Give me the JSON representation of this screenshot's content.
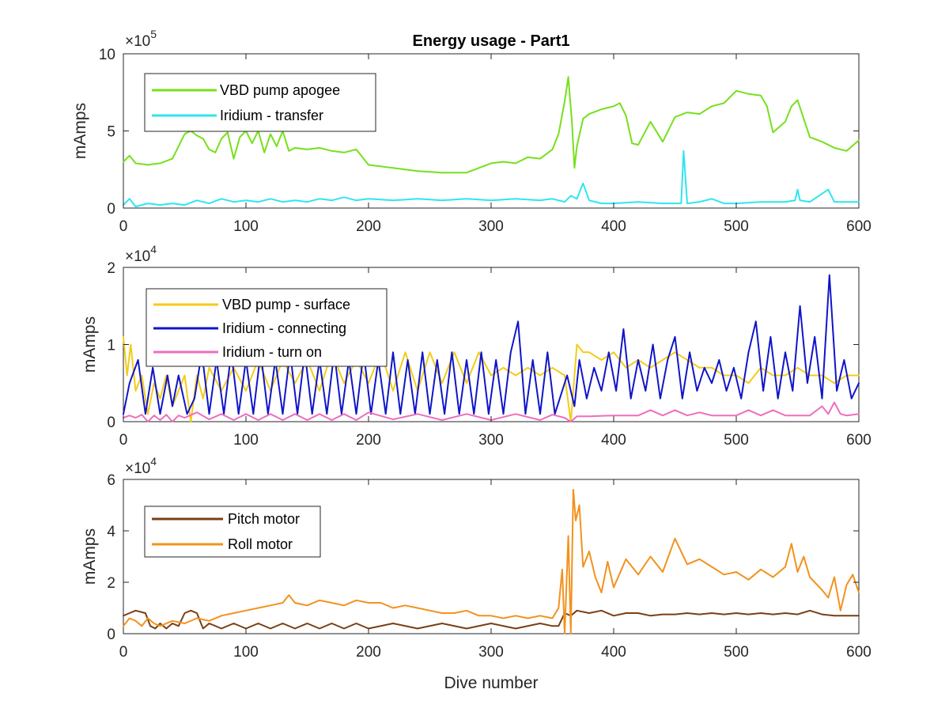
{
  "chart_data": [
    {
      "type": "line",
      "title": "Energy usage - Part1",
      "ylabel": "mAmps",
      "xlabel": "",
      "xlim": [
        0,
        600
      ],
      "ylim": [
        0,
        10
      ],
      "y_multiplier_label": "×10",
      "y_multiplier_exp": "5",
      "xticks": [
        "0",
        "100",
        "200",
        "300",
        "400",
        "500",
        "600"
      ],
      "yticks": [
        "0",
        "5",
        "10"
      ],
      "legend_position": "top-left",
      "series": [
        {
          "name": "VBD pump apogee",
          "color": "#77e01c",
          "x": [
            0,
            5,
            10,
            20,
            30,
            40,
            50,
            55,
            60,
            65,
            70,
            75,
            80,
            85,
            90,
            95,
            100,
            105,
            110,
            115,
            120,
            125,
            130,
            135,
            140,
            150,
            160,
            170,
            180,
            190,
            200,
            220,
            240,
            260,
            280,
            300,
            310,
            320,
            330,
            340,
            350,
            355,
            360,
            363,
            366,
            368,
            370,
            375,
            380,
            390,
            400,
            405,
            410,
            415,
            420,
            430,
            440,
            450,
            460,
            470,
            480,
            490,
            500,
            510,
            520,
            525,
            530,
            540,
            545,
            550,
            560,
            570,
            580,
            590,
            600
          ],
          "y": [
            3.0,
            3.4,
            2.9,
            2.8,
            2.9,
            3.2,
            4.8,
            5.0,
            4.7,
            4.5,
            3.8,
            3.6,
            4.5,
            4.9,
            3.2,
            4.6,
            5.0,
            4.2,
            5.0,
            3.6,
            4.8,
            4.0,
            5.0,
            3.7,
            3.9,
            3.8,
            3.9,
            3.7,
            3.6,
            3.8,
            2.8,
            2.6,
            2.4,
            2.3,
            2.3,
            2.9,
            3.0,
            2.9,
            3.3,
            3.2,
            3.8,
            4.8,
            6.9,
            8.5,
            5.5,
            2.6,
            4.0,
            5.8,
            6.1,
            6.4,
            6.6,
            6.8,
            6.0,
            4.2,
            4.1,
            5.6,
            4.3,
            5.9,
            6.2,
            6.1,
            6.6,
            6.8,
            7.6,
            7.4,
            7.3,
            6.6,
            4.9,
            5.6,
            6.6,
            7.0,
            4.6,
            4.3,
            3.9,
            3.7,
            4.4
          ]
        },
        {
          "name": "Iridium - transfer",
          "color": "#2fe5ef",
          "x": [
            0,
            5,
            10,
            20,
            30,
            40,
            50,
            60,
            70,
            80,
            90,
            100,
            110,
            120,
            130,
            140,
            150,
            160,
            170,
            180,
            190,
            200,
            220,
            240,
            260,
            280,
            300,
            320,
            340,
            350,
            360,
            365,
            370,
            375,
            380,
            390,
            400,
            420,
            440,
            450,
            455,
            457,
            460,
            470,
            480,
            490,
            500,
            520,
            540,
            548,
            550,
            552,
            560,
            575,
            580,
            590,
            600
          ],
          "y": [
            0.2,
            0.6,
            0.1,
            0.3,
            0.2,
            0.3,
            0.2,
            0.5,
            0.3,
            0.6,
            0.4,
            0.5,
            0.4,
            0.6,
            0.4,
            0.5,
            0.4,
            0.6,
            0.5,
            0.7,
            0.5,
            0.6,
            0.5,
            0.6,
            0.5,
            0.6,
            0.5,
            0.6,
            0.5,
            0.6,
            0.4,
            0.8,
            0.6,
            1.6,
            0.5,
            0.3,
            0.3,
            0.4,
            0.3,
            0.3,
            0.3,
            3.7,
            0.3,
            0.4,
            0.6,
            0.3,
            0.3,
            0.4,
            0.4,
            0.5,
            1.2,
            0.5,
            0.4,
            1.2,
            0.4,
            0.4,
            0.4
          ]
        }
      ]
    },
    {
      "type": "line",
      "title": "",
      "ylabel": "mAmps",
      "xlabel": "",
      "xlim": [
        0,
        600
      ],
      "ylim": [
        0,
        2
      ],
      "y_multiplier_label": "×10",
      "y_multiplier_exp": "4",
      "xticks": [
        "0",
        "100",
        "200",
        "300",
        "400",
        "500",
        "600"
      ],
      "yticks": [
        "0",
        "1",
        "2"
      ],
      "legend_position": "top-left",
      "series": [
        {
          "name": "VBD pump - surface",
          "color": "#f4cb18",
          "x": [
            0,
            3,
            6,
            10,
            15,
            20,
            25,
            30,
            35,
            40,
            45,
            50,
            55,
            60,
            65,
            70,
            80,
            90,
            100,
            110,
            120,
            130,
            140,
            150,
            160,
            170,
            180,
            190,
            200,
            210,
            220,
            230,
            240,
            250,
            260,
            270,
            280,
            290,
            300,
            310,
            320,
            330,
            340,
            350,
            360,
            365,
            370,
            375,
            380,
            390,
            400,
            410,
            420,
            430,
            440,
            450,
            460,
            470,
            480,
            490,
            500,
            510,
            520,
            530,
            540,
            550,
            560,
            570,
            580,
            590,
            600
          ],
          "y": [
            1.1,
            0.6,
            1.0,
            0.4,
            0.6,
            0.1,
            0.5,
            0.3,
            0.6,
            0.2,
            0.4,
            0.6,
            0.0,
            0.6,
            0.3,
            0.7,
            0.4,
            0.7,
            0.4,
            0.8,
            0.4,
            0.8,
            0.5,
            0.8,
            0.4,
            0.9,
            0.5,
            0.8,
            0.5,
            0.9,
            0.4,
            0.9,
            0.4,
            0.9,
            0.5,
            0.9,
            0.5,
            0.9,
            0.6,
            0.7,
            0.6,
            0.7,
            0.6,
            0.7,
            0.6,
            0.0,
            1.0,
            0.9,
            0.9,
            0.8,
            0.9,
            0.7,
            0.8,
            0.7,
            0.8,
            0.9,
            0.8,
            0.7,
            0.7,
            0.6,
            0.6,
            0.5,
            0.7,
            0.6,
            0.6,
            0.7,
            0.6,
            0.6,
            0.5,
            0.6,
            0.6
          ]
        },
        {
          "name": "Iridium - connecting",
          "color": "#1015c8",
          "x": [
            0,
            5,
            12,
            18,
            24,
            30,
            36,
            40,
            45,
            52,
            58,
            64,
            70,
            76,
            82,
            88,
            94,
            100,
            106,
            112,
            118,
            124,
            130,
            136,
            142,
            148,
            154,
            160,
            166,
            172,
            178,
            184,
            190,
            196,
            202,
            208,
            214,
            220,
            226,
            232,
            238,
            244,
            250,
            256,
            262,
            268,
            274,
            280,
            286,
            292,
            298,
            304,
            310,
            316,
            322,
            328,
            334,
            340,
            346,
            352,
            358,
            362,
            368,
            372,
            378,
            384,
            390,
            396,
            402,
            408,
            414,
            420,
            426,
            432,
            438,
            444,
            450,
            456,
            462,
            468,
            474,
            480,
            486,
            492,
            498,
            504,
            510,
            516,
            522,
            528,
            534,
            540,
            546,
            552,
            558,
            564,
            570,
            576,
            582,
            588,
            594,
            600
          ],
          "y": [
            0.1,
            0.5,
            0.8,
            0.1,
            0.7,
            0.1,
            0.6,
            0.2,
            0.6,
            0.1,
            0.3,
            0.9,
            0.1,
            0.8,
            0.1,
            0.9,
            0.1,
            0.8,
            0.1,
            0.9,
            0.1,
            0.8,
            0.1,
            0.9,
            0.1,
            0.9,
            0.1,
            0.8,
            0.1,
            0.9,
            0.1,
            0.8,
            0.1,
            0.9,
            0.1,
            0.8,
            0.1,
            0.9,
            0.1,
            0.8,
            0.1,
            0.9,
            0.1,
            0.8,
            0.1,
            0.9,
            0.1,
            0.8,
            0.1,
            0.9,
            0.1,
            0.8,
            0.1,
            0.9,
            1.3,
            0.1,
            0.8,
            0.1,
            0.9,
            0.1,
            0.4,
            0.6,
            0.2,
            0.8,
            0.3,
            0.7,
            0.4,
            0.9,
            0.4,
            1.2,
            0.3,
            0.8,
            0.4,
            1.0,
            0.3,
            0.8,
            1.1,
            0.3,
            0.9,
            0.4,
            0.7,
            0.5,
            0.8,
            0.4,
            0.7,
            0.3,
            0.9,
            1.3,
            0.4,
            1.1,
            0.3,
            0.9,
            0.4,
            1.5,
            0.5,
            1.1,
            0.3,
            1.9,
            0.4,
            0.8,
            0.3,
            0.5
          ]
        },
        {
          "name": "Iridium - turn on",
          "color": "#ee6ebd",
          "x": [
            0,
            5,
            10,
            15,
            20,
            25,
            30,
            35,
            40,
            45,
            50,
            60,
            70,
            80,
            90,
            100,
            110,
            120,
            130,
            140,
            150,
            160,
            170,
            180,
            190,
            200,
            220,
            240,
            260,
            280,
            300,
            320,
            340,
            350,
            360,
            365,
            370,
            380,
            400,
            420,
            430,
            440,
            450,
            460,
            470,
            480,
            500,
            510,
            520,
            530,
            540,
            550,
            560,
            570,
            575,
            580,
            585,
            590,
            600
          ],
          "y": [
            0.05,
            0.08,
            0.05,
            0.09,
            0.0,
            0.08,
            0.02,
            0.09,
            0.0,
            0.08,
            0.05,
            0.12,
            0.03,
            0.1,
            0.02,
            0.1,
            0.02,
            0.1,
            0.02,
            0.1,
            0.02,
            0.1,
            0.02,
            0.1,
            0.02,
            0.12,
            0.03,
            0.1,
            0.02,
            0.1,
            0.02,
            0.1,
            0.02,
            0.09,
            0.05,
            0.0,
            0.07,
            0.07,
            0.08,
            0.08,
            0.15,
            0.08,
            0.15,
            0.08,
            0.12,
            0.08,
            0.08,
            0.15,
            0.08,
            0.15,
            0.08,
            0.08,
            0.08,
            0.2,
            0.1,
            0.25,
            0.1,
            0.08,
            0.1
          ]
        }
      ]
    },
    {
      "type": "line",
      "title": "",
      "ylabel": "mAmps",
      "xlabel": "Dive number",
      "xlim": [
        0,
        600
      ],
      "ylim": [
        0,
        6
      ],
      "y_multiplier_label": "×10",
      "y_multiplier_exp": "4",
      "xticks": [
        "0",
        "100",
        "200",
        "300",
        "400",
        "500",
        "600"
      ],
      "yticks": [
        "0",
        "2",
        "4",
        "6"
      ],
      "legend_position": "top-left",
      "series": [
        {
          "name": "Pitch motor",
          "color": "#7a3f14",
          "x": [
            0,
            5,
            10,
            18,
            22,
            26,
            30,
            35,
            40,
            45,
            50,
            55,
            60,
            65,
            70,
            80,
            90,
            100,
            110,
            120,
            130,
            140,
            150,
            160,
            170,
            180,
            190,
            200,
            220,
            240,
            260,
            280,
            300,
            320,
            340,
            350,
            355,
            360,
            365,
            370,
            380,
            390,
            400,
            410,
            420,
            430,
            440,
            450,
            460,
            470,
            480,
            490,
            500,
            510,
            520,
            530,
            540,
            550,
            560,
            570,
            580,
            590,
            600
          ],
          "y": [
            0.7,
            0.8,
            0.9,
            0.8,
            0.3,
            0.2,
            0.4,
            0.2,
            0.4,
            0.3,
            0.8,
            0.9,
            0.8,
            0.2,
            0.4,
            0.2,
            0.4,
            0.2,
            0.4,
            0.2,
            0.4,
            0.2,
            0.4,
            0.2,
            0.4,
            0.2,
            0.4,
            0.2,
            0.4,
            0.2,
            0.4,
            0.2,
            0.4,
            0.2,
            0.4,
            0.3,
            0.3,
            0.8,
            0.7,
            0.9,
            0.8,
            0.9,
            0.7,
            0.8,
            0.8,
            0.7,
            0.75,
            0.75,
            0.8,
            0.75,
            0.8,
            0.75,
            0.8,
            0.75,
            0.8,
            0.75,
            0.8,
            0.75,
            0.9,
            0.75,
            0.7,
            0.7,
            0.7
          ]
        },
        {
          "name": "Roll motor",
          "color": "#f2921f",
          "x": [
            0,
            5,
            10,
            15,
            20,
            25,
            30,
            40,
            50,
            60,
            70,
            80,
            90,
            100,
            110,
            120,
            130,
            135,
            140,
            150,
            160,
            170,
            180,
            190,
            200,
            210,
            220,
            230,
            240,
            250,
            260,
            270,
            280,
            290,
            300,
            310,
            320,
            330,
            340,
            350,
            355,
            358,
            360,
            363,
            365,
            367,
            369,
            372,
            375,
            380,
            385,
            390,
            395,
            400,
            410,
            420,
            430,
            440,
            450,
            460,
            470,
            480,
            490,
            500,
            510,
            520,
            530,
            540,
            545,
            550,
            555,
            560,
            570,
            575,
            580,
            585,
            590,
            595,
            600
          ],
          "y": [
            0.3,
            0.6,
            0.5,
            0.3,
            0.6,
            0.4,
            0.3,
            0.5,
            0.4,
            0.6,
            0.5,
            0.7,
            0.8,
            0.9,
            1.0,
            1.1,
            1.2,
            1.5,
            1.2,
            1.1,
            1.3,
            1.2,
            1.1,
            1.3,
            1.2,
            1.2,
            1.0,
            1.1,
            1.0,
            0.9,
            0.8,
            0.8,
            0.9,
            0.7,
            0.7,
            0.6,
            0.7,
            0.6,
            0.7,
            0.6,
            1.0,
            2.5,
            0.0,
            3.8,
            0.0,
            5.6,
            4.4,
            5.0,
            2.6,
            3.2,
            2.2,
            1.6,
            2.8,
            1.8,
            2.9,
            2.3,
            3.0,
            2.4,
            3.7,
            2.7,
            2.9,
            2.6,
            2.3,
            2.4,
            2.1,
            2.5,
            2.2,
            2.6,
            3.5,
            2.4,
            3.0,
            2.2,
            1.7,
            1.4,
            2.2,
            0.9,
            1.9,
            2.3,
            1.6
          ]
        }
      ]
    }
  ]
}
